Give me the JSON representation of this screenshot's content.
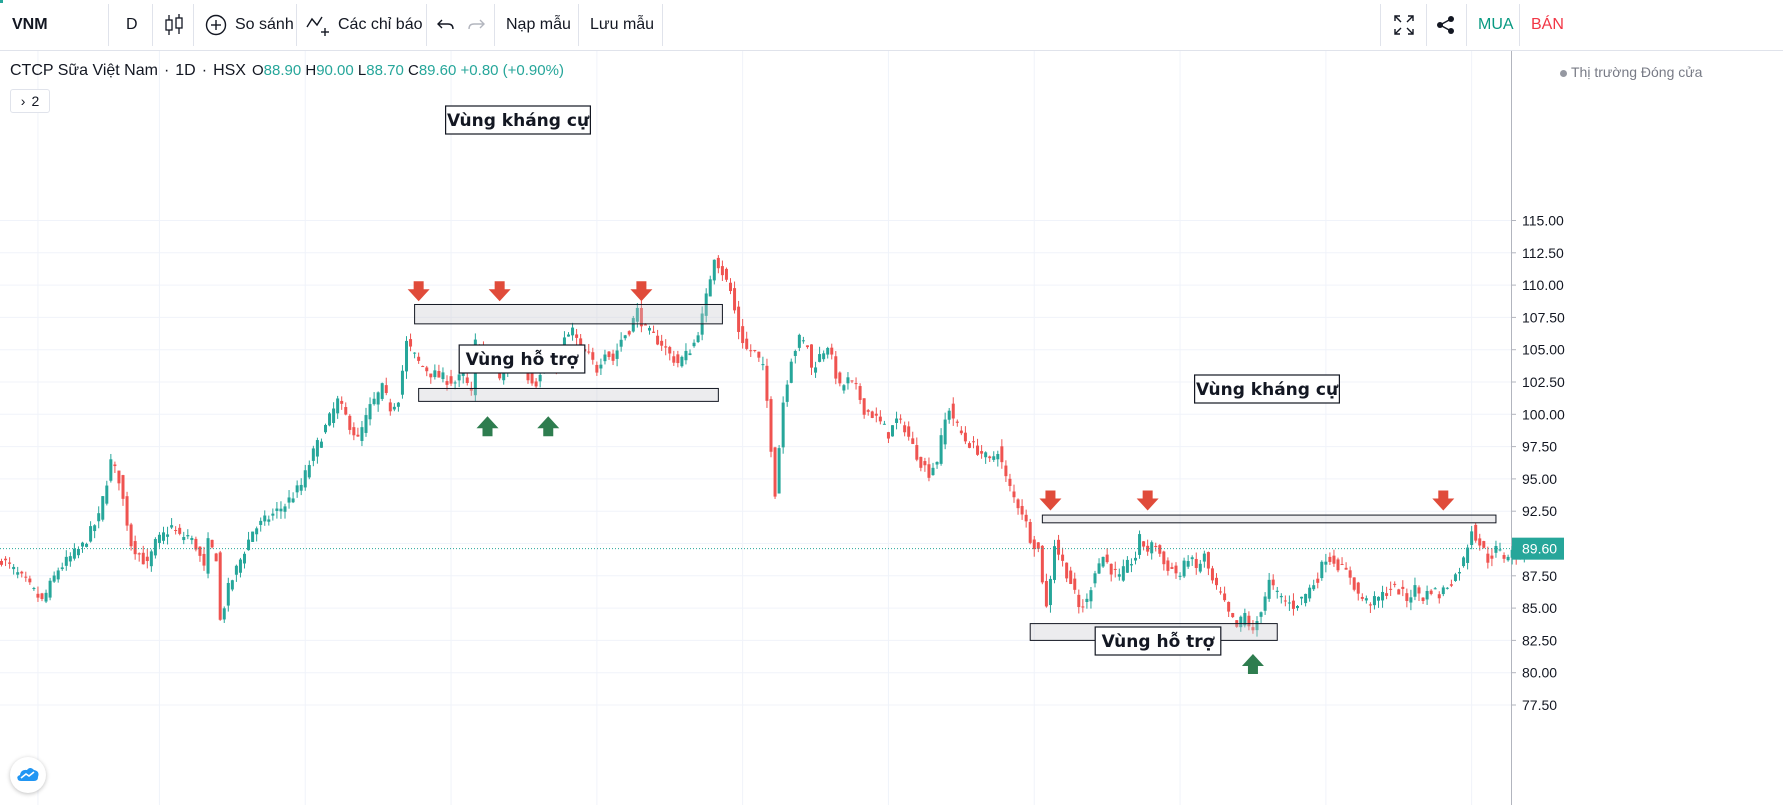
{
  "toolbar": {
    "symbol": "VNM",
    "interval": "D",
    "compare_label": "So sánh",
    "indicators_label": "Các chỉ báo",
    "load_template_label": "Nạp mẫu",
    "save_template_label": "Lưu mẫu",
    "buy_label": "MUA",
    "sell_label": "BÁN"
  },
  "legend": {
    "name": "CTCP Sữa Việt Nam",
    "interval": "1D",
    "exchange": "HSX",
    "open": "88.90",
    "high": "90.00",
    "low": "88.70",
    "close": "89.60",
    "change": "+0.80 (+0.90%)",
    "collapsed_count": "2"
  },
  "market_status": "Thị trường Đóng cửa",
  "colors": {
    "up": "#26a69a",
    "down": "#ef5350",
    "accent": "#26a69a",
    "buy": "#089981",
    "sell": "#f23645"
  },
  "chart_data": {
    "type": "candlestick",
    "y_axis_ticks": [
      "115.00",
      "112.50",
      "110.00",
      "107.50",
      "105.00",
      "102.50",
      "100.00",
      "97.50",
      "95.00",
      "92.50",
      "90.00",
      "87.50",
      "85.00",
      "82.50",
      "80.00",
      "77.50"
    ],
    "ylim": [
      76.3,
      116.3
    ],
    "last_price_label": "89.60",
    "last_price": 89.6,
    "annotations": [
      {
        "text": "Vùng kháng cự",
        "zone": [
          107.0,
          108.5
        ],
        "kind": "resistance",
        "arrows_at": [
          108.6,
          108.6,
          108.6
        ]
      },
      {
        "text": "Vùng hỗ trợ",
        "zone": [
          101.0,
          102.0
        ],
        "kind": "support",
        "arrows_at": [
          100.0,
          100.0
        ]
      },
      {
        "text": "Vùng kháng cự",
        "zone": [
          91.6,
          92.2
        ],
        "kind": "resistance",
        "arrows_at": [
          92.4,
          92.4,
          92.4
        ]
      },
      {
        "text": "Vùng hỗ trợ",
        "zone": [
          82.5,
          83.8
        ],
        "kind": "support",
        "arrows_at": [
          81.6
        ]
      }
    ],
    "close_path": [
      [
        0,
        88.8
      ],
      [
        6,
        87
      ],
      [
        10,
        85.5
      ],
      [
        14,
        88
      ],
      [
        20,
        89.8
      ],
      [
        24,
        92
      ],
      [
        27,
        96.3
      ],
      [
        29,
        95
      ],
      [
        32,
        90
      ],
      [
        36,
        88.3
      ],
      [
        38,
        90
      ],
      [
        42,
        91.3
      ],
      [
        44,
        90.5
      ],
      [
        46,
        90.6
      ],
      [
        48,
        89.8
      ],
      [
        50,
        88
      ],
      [
        51,
        90
      ],
      [
        53,
        89
      ],
      [
        54,
        84
      ],
      [
        56,
        86.5
      ],
      [
        58,
        88
      ],
      [
        60,
        89.5
      ],
      [
        62,
        91
      ],
      [
        66,
        92
      ],
      [
        70,
        93
      ],
      [
        74,
        94.5
      ],
      [
        77,
        97
      ],
      [
        80,
        99
      ],
      [
        83,
        101
      ],
      [
        86,
        99.2
      ],
      [
        88,
        98
      ],
      [
        91,
        100.5
      ],
      [
        94,
        102
      ],
      [
        96,
        100.5
      ],
      [
        98,
        101.3
      ],
      [
        100,
        105.5
      ],
      [
        103,
        104
      ],
      [
        106,
        103.2
      ],
      [
        109,
        102.8
      ],
      [
        112,
        102.5
      ],
      [
        114,
        103
      ],
      [
        116,
        101.5
      ],
      [
        117,
        105.5
      ],
      [
        119,
        104.6
      ],
      [
        121,
        104
      ],
      [
        123,
        102.6
      ],
      [
        125,
        103.8
      ],
      [
        127,
        105
      ],
      [
        129,
        104.3
      ],
      [
        130,
        103
      ],
      [
        132,
        102.5
      ],
      [
        134,
        103.4
      ],
      [
        137,
        104
      ],
      [
        139,
        105.7
      ],
      [
        141,
        106.5
      ],
      [
        143,
        105
      ],
      [
        145,
        104.5
      ],
      [
        147,
        103.5
      ],
      [
        149,
        105
      ],
      [
        151,
        104.2
      ],
      [
        153,
        105.8
      ],
      [
        155,
        106.6
      ],
      [
        157,
        108
      ],
      [
        159,
        106.5
      ],
      [
        161,
        106
      ],
      [
        163,
        105.5
      ],
      [
        165,
        104.6
      ],
      [
        167,
        104
      ],
      [
        169,
        104.6
      ],
      [
        171,
        105.5
      ],
      [
        173,
        107.5
      ],
      [
        174,
        109
      ],
      [
        176,
        112.3
      ],
      [
        178,
        111
      ],
      [
        180,
        109.5
      ],
      [
        182,
        106.5
      ],
      [
        184,
        105
      ],
      [
        186,
        104.8
      ],
      [
        188,
        103.5
      ],
      [
        189,
        101
      ],
      [
        191,
        94
      ],
      [
        193,
        101
      ],
      [
        195,
        104.4
      ],
      [
        197,
        105.8
      ],
      [
        199,
        105.3
      ],
      [
        200,
        103.5
      ],
      [
        202,
        104.5
      ],
      [
        204,
        105.4
      ],
      [
        205,
        104.2
      ],
      [
        207,
        102
      ],
      [
        209,
        102.6
      ],
      [
        211,
        102
      ],
      [
        213,
        100.4
      ],
      [
        215,
        100
      ],
      [
        217,
        99.3
      ],
      [
        219,
        98.5
      ],
      [
        221,
        99.5
      ],
      [
        223,
        99
      ],
      [
        225,
        97.5
      ],
      [
        227,
        96.3
      ],
      [
        229,
        95.5
      ],
      [
        231,
        96.5
      ],
      [
        233,
        99.5
      ],
      [
        234,
        100.5
      ],
      [
        236,
        99
      ],
      [
        238,
        98
      ],
      [
        240,
        97.5
      ],
      [
        242,
        97
      ],
      [
        244,
        96.3
      ],
      [
        246,
        97.3
      ],
      [
        248,
        95
      ],
      [
        250,
        93.5
      ],
      [
        252,
        92.5
      ],
      [
        254,
        90.5
      ],
      [
        256,
        89.5
      ],
      [
        258,
        85
      ],
      [
        260,
        90
      ],
      [
        262,
        88.5
      ],
      [
        264,
        87
      ],
      [
        266,
        85
      ],
      [
        268,
        85.5
      ],
      [
        270,
        88
      ],
      [
        272,
        89
      ],
      [
        274,
        88
      ],
      [
        276,
        87.3
      ],
      [
        278,
        88.3
      ],
      [
        280,
        89
      ],
      [
        281,
        90.3
      ],
      [
        283,
        89.5
      ],
      [
        285,
        90
      ],
      [
        287,
        88.4
      ],
      [
        289,
        88
      ],
      [
        291,
        87.5
      ],
      [
        293,
        89
      ],
      [
        295,
        88
      ],
      [
        297,
        89
      ],
      [
        299,
        87
      ],
      [
        301,
        86
      ],
      [
        303,
        84.5
      ],
      [
        305,
        83.5
      ],
      [
        307,
        84.5
      ],
      [
        309,
        83
      ],
      [
        311,
        85
      ],
      [
        313,
        87
      ],
      [
        315,
        86
      ],
      [
        317,
        85.5
      ],
      [
        319,
        85.2
      ],
      [
        321,
        85.7
      ],
      [
        323,
        86.5
      ],
      [
        325,
        87.4
      ],
      [
        327,
        89
      ],
      [
        329,
        88.7
      ],
      [
        331,
        88
      ],
      [
        333,
        87.5
      ],
      [
        335,
        86
      ],
      [
        337,
        85.5
      ],
      [
        339,
        85.5
      ],
      [
        341,
        86
      ],
      [
        343,
        86.6
      ],
      [
        345,
        86.4
      ],
      [
        347,
        85.7
      ],
      [
        349,
        86.5
      ],
      [
        351,
        85.8
      ],
      [
        353,
        86.5
      ],
      [
        355,
        86
      ],
      [
        357,
        86.8
      ],
      [
        359,
        87.5
      ],
      [
        361,
        88.7
      ],
      [
        363,
        91.2
      ],
      [
        365,
        90
      ],
      [
        367,
        88.8
      ],
      [
        369,
        89.5
      ],
      [
        371,
        89
      ],
      [
        373,
        89.3
      ],
      [
        375,
        89
      ],
      [
        377,
        89.6
      ]
    ],
    "x_grid_bars": [
      9,
      39,
      75,
      111,
      147,
      183,
      219,
      255,
      291,
      327,
      363
    ]
  }
}
